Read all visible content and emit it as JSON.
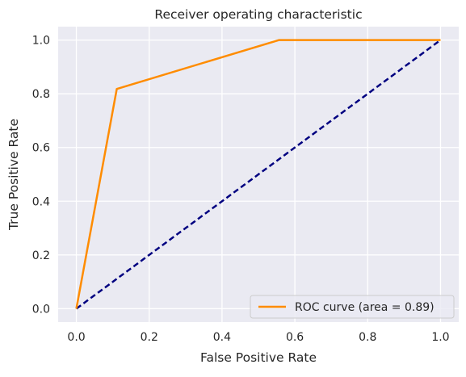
{
  "chart_data": {
    "type": "line",
    "title": "Receiver operating characteristic",
    "xlabel": "False Positive Rate",
    "ylabel": "True Positive Rate",
    "xlim": [
      -0.05,
      1.05
    ],
    "ylim": [
      -0.05,
      1.05
    ],
    "xticks": [
      0.0,
      0.2,
      0.4,
      0.6,
      0.8,
      1.0
    ],
    "yticks": [
      0.0,
      0.2,
      0.4,
      0.6,
      0.8,
      1.0
    ],
    "xtick_labels": [
      "0.0",
      "0.2",
      "0.4",
      "0.6",
      "0.8",
      "1.0"
    ],
    "ytick_labels": [
      "0.0",
      "0.2",
      "0.4",
      "0.6",
      "0.8",
      "1.0"
    ],
    "grid": true,
    "legend_position": "lower-right",
    "series": [
      {
        "name": "ROC curve (area = 0.89)",
        "color": "#ff8c00",
        "style": "solid",
        "x": [
          0.0,
          0.111,
          0.556,
          1.0
        ],
        "y": [
          0.0,
          0.818,
          1.0,
          1.0
        ]
      },
      {
        "color": "#000080",
        "style": "dashed",
        "x": [
          0.0,
          1.0
        ],
        "y": [
          0.0,
          1.0
        ]
      }
    ],
    "colors": {
      "plot_background": "#eaeaf2",
      "grid": "#ffffff",
      "text": "#262626"
    }
  }
}
